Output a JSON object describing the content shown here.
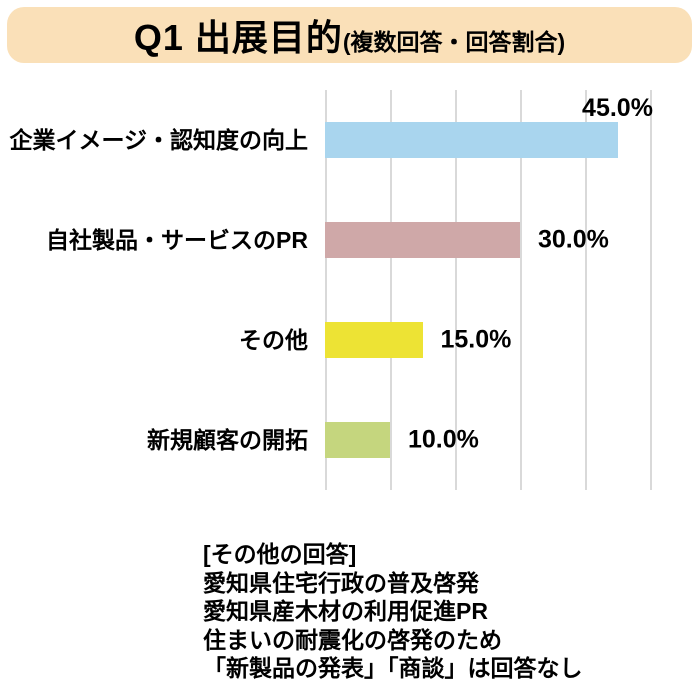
{
  "title": {
    "main": "Q1 出展目的",
    "sub": "(複数回答・回答割合)"
  },
  "chart_data": {
    "type": "bar",
    "orientation": "horizontal",
    "title": "Q1 出展目的(複数回答・回答割合)",
    "categories": [
      "企業イメージ・認知度の向上",
      "自社製品・サービスのPR",
      "その他",
      "新規顧客の開拓"
    ],
    "values": [
      45.0,
      30.0,
      15.0,
      10.0
    ],
    "value_labels": [
      "45.0%",
      "30.0%",
      "15.0%",
      "10.0%"
    ],
    "bar_colors": [
      "#A9D5EE",
      "#CFA8A8",
      "#EDE334",
      "#C5D67E"
    ],
    "label_placement": [
      "above-end",
      "right",
      "right",
      "right"
    ],
    "xlim": [
      0,
      50
    ],
    "gridline_interval": 10,
    "grid": true,
    "legend": false,
    "xlabel": "",
    "ylabel": ""
  },
  "note": {
    "lines": [
      "[その他の回答]",
      "愛知県住宅行政の普及啓発",
      "愛知県産木材の利用促進PR",
      "住まいの耐震化の啓発のため",
      "「新製品の発表」「商談」は回答なし"
    ]
  },
  "colors": {
    "banner_bg": "#FAE0B8",
    "gridline": "#D9D9D9",
    "text": "#000000",
    "background": "#FFFFFF"
  }
}
